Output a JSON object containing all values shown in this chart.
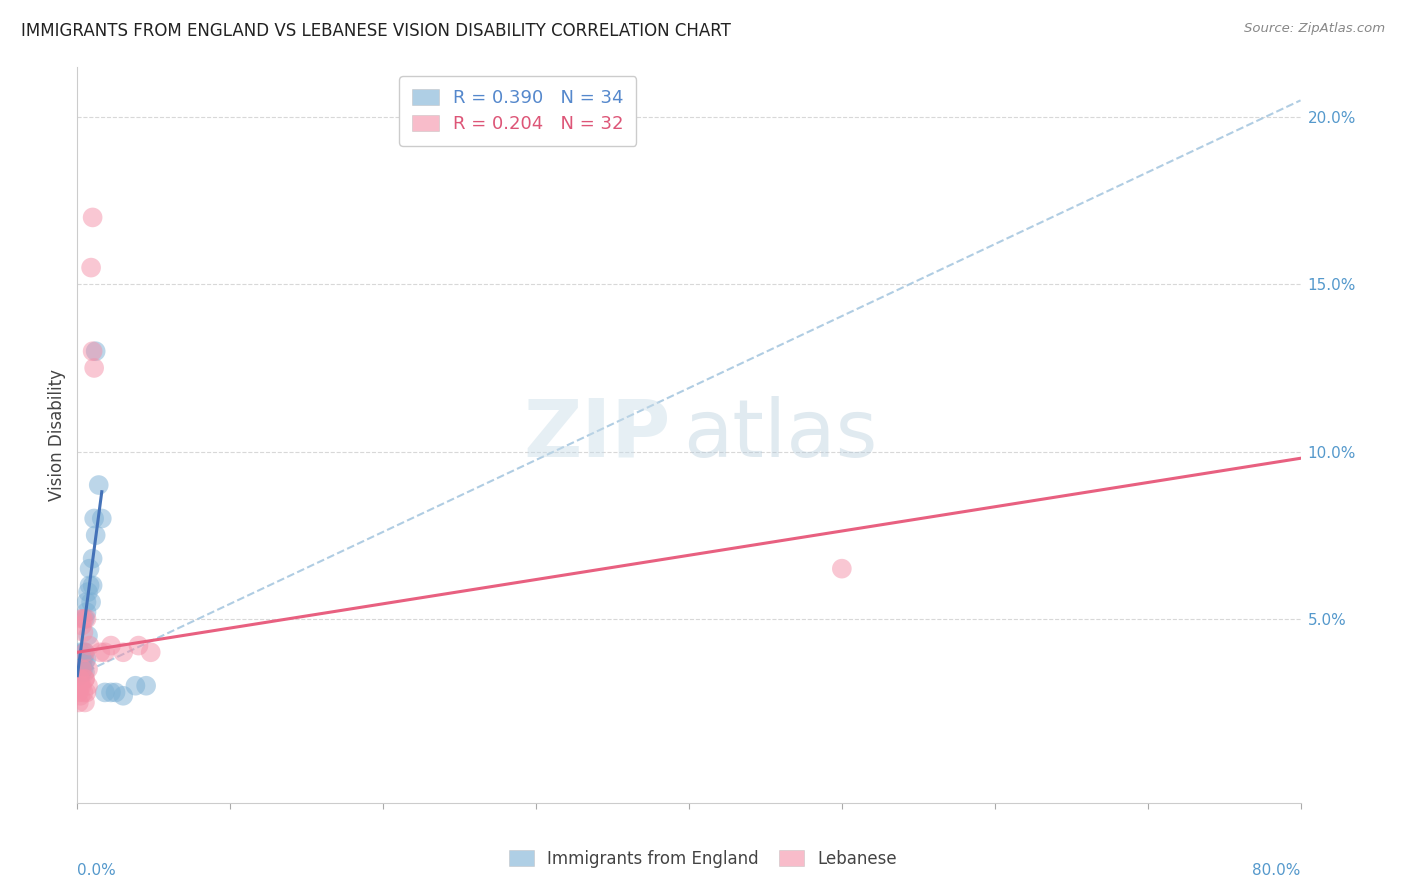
{
  "title": "IMMIGRANTS FROM ENGLAND VS LEBANESE VISION DISABILITY CORRELATION CHART",
  "source": "Source: ZipAtlas.com",
  "ylabel": "Vision Disability",
  "xlim": [
    0.0,
    0.8
  ],
  "ylim": [
    -0.005,
    0.215
  ],
  "ytick_values": [
    0.05,
    0.1,
    0.15,
    0.2
  ],
  "ytick_labels": [
    "5.0%",
    "10.0%",
    "15.0%",
    "20.0%"
  ],
  "xtick_left": "0.0%",
  "xtick_right": "80.0%",
  "england_scatter": [
    [
      0.001,
      0.033
    ],
    [
      0.002,
      0.036
    ],
    [
      0.002,
      0.04
    ],
    [
      0.003,
      0.037
    ],
    [
      0.003,
      0.034
    ],
    [
      0.003,
      0.038
    ],
    [
      0.004,
      0.035
    ],
    [
      0.004,
      0.04
    ],
    [
      0.004,
      0.038
    ],
    [
      0.005,
      0.037
    ],
    [
      0.005,
      0.034
    ],
    [
      0.005,
      0.04
    ],
    [
      0.005,
      0.05
    ],
    [
      0.006,
      0.038
    ],
    [
      0.006,
      0.055
    ],
    [
      0.006,
      0.052
    ],
    [
      0.007,
      0.045
    ],
    [
      0.007,
      0.058
    ],
    [
      0.008,
      0.06
    ],
    [
      0.008,
      0.065
    ],
    [
      0.009,
      0.055
    ],
    [
      0.01,
      0.068
    ],
    [
      0.01,
      0.06
    ],
    [
      0.011,
      0.08
    ],
    [
      0.012,
      0.075
    ],
    [
      0.012,
      0.13
    ],
    [
      0.014,
      0.09
    ],
    [
      0.016,
      0.08
    ],
    [
      0.018,
      0.028
    ],
    [
      0.022,
      0.028
    ],
    [
      0.025,
      0.028
    ],
    [
      0.03,
      0.027
    ],
    [
      0.038,
      0.03
    ],
    [
      0.045,
      0.03
    ]
  ],
  "lebanese_scatter": [
    [
      0.001,
      0.025
    ],
    [
      0.001,
      0.028
    ],
    [
      0.002,
      0.027
    ],
    [
      0.002,
      0.03
    ],
    [
      0.002,
      0.032
    ],
    [
      0.003,
      0.03
    ],
    [
      0.003,
      0.035
    ],
    [
      0.003,
      0.05
    ],
    [
      0.003,
      0.048
    ],
    [
      0.004,
      0.05
    ],
    [
      0.004,
      0.046
    ],
    [
      0.004,
      0.028
    ],
    [
      0.005,
      0.04
    ],
    [
      0.005,
      0.025
    ],
    [
      0.005,
      0.032
    ],
    [
      0.005,
      0.032
    ],
    [
      0.006,
      0.05
    ],
    [
      0.006,
      0.028
    ],
    [
      0.007,
      0.035
    ],
    [
      0.007,
      0.03
    ],
    [
      0.008,
      0.042
    ],
    [
      0.009,
      0.155
    ],
    [
      0.01,
      0.17
    ],
    [
      0.01,
      0.13
    ],
    [
      0.011,
      0.125
    ],
    [
      0.015,
      0.04
    ],
    [
      0.018,
      0.04
    ],
    [
      0.022,
      0.042
    ],
    [
      0.03,
      0.04
    ],
    [
      0.04,
      0.042
    ],
    [
      0.048,
      0.04
    ],
    [
      0.5,
      0.065
    ]
  ],
  "england_solid_line": {
    "x0": 0.0,
    "x1": 0.016,
    "y0": 0.033,
    "y1": 0.088
  },
  "dashed_line": {
    "x0": 0.0,
    "x1": 0.8,
    "y0": 0.033,
    "y1": 0.205
  },
  "lebanese_line": {
    "x0": 0.0,
    "x1": 0.8,
    "y0": 0.04,
    "y1": 0.098
  },
  "england_color": "#7bafd4",
  "lebanese_color": "#f490a8",
  "england_line_color": "#4472b8",
  "lebanese_line_color": "#e86080",
  "dashed_line_color": "#a8c8e0",
  "legend_entries": [
    {
      "label": "R = 0.390   N = 34",
      "color": "#5588cc"
    },
    {
      "label": "R = 0.204   N = 32",
      "color": "#dd5577"
    }
  ],
  "bottom_legend": [
    "Immigrants from England",
    "Lebanese"
  ],
  "watermark_zip": "ZIP",
  "watermark_atlas": "atlas",
  "background_color": "#ffffff",
  "grid_color": "#d8d8d8"
}
